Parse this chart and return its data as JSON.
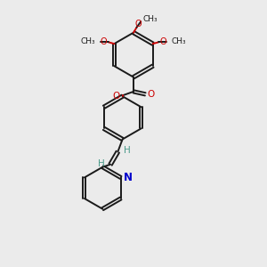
{
  "background_color": "#ebebeb",
  "bond_color": "#1a1a1a",
  "oxygen_color": "#cc0000",
  "nitrogen_color": "#0000cc",
  "vinyl_h_color": "#4a9a8a",
  "line_width": 1.4,
  "figsize": [
    3.0,
    3.0
  ],
  "dpi": 100,
  "xlim": [
    0,
    10
  ],
  "ylim": [
    0,
    10
  ]
}
